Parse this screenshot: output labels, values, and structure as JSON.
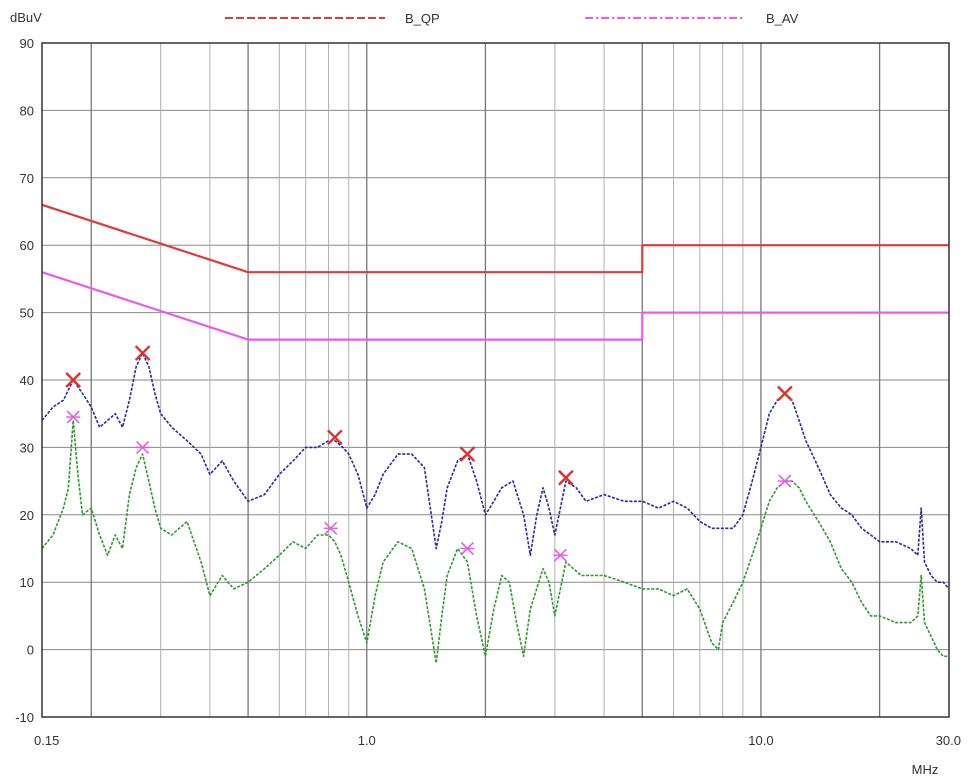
{
  "chart_data": {
    "type": "line",
    "title": "",
    "ylabel": "dBuV",
    "xlabel": "MHz",
    "x_scale": "log",
    "xlim": [
      0.15,
      30.0
    ],
    "ylim": [
      -10,
      90
    ],
    "grid": true,
    "legend_position": "top",
    "x_tick_labels": [
      {
        "value": 0.15,
        "label": "0.15"
      },
      {
        "value": 1.0,
        "label": "1.0"
      },
      {
        "value": 10.0,
        "label": "10.0"
      },
      {
        "value": 30.0,
        "label": "30.0"
      }
    ],
    "y_ticks": [
      90,
      80,
      70,
      60,
      50,
      40,
      30,
      20,
      10,
      0,
      -10
    ],
    "series": [
      {
        "name": "B_QP",
        "style": "dashed",
        "color": "#e03a3a",
        "points": [
          [
            0.15,
            66
          ],
          [
            0.5,
            56
          ],
          [
            5.0,
            56
          ],
          [
            5.0,
            60
          ],
          [
            30.0,
            60
          ]
        ]
      },
      {
        "name": "B_AV",
        "style": "dash-dot",
        "color": "#e85ce8",
        "points": [
          [
            0.15,
            56
          ],
          [
            0.5,
            46
          ],
          [
            5.0,
            46
          ],
          [
            5.0,
            50
          ],
          [
            30.0,
            50
          ]
        ]
      },
      {
        "style": "trace",
        "color": "#2a2a9a",
        "points": [
          [
            0.15,
            34
          ],
          [
            0.16,
            36
          ],
          [
            0.17,
            37
          ],
          [
            0.18,
            40
          ],
          [
            0.19,
            38
          ],
          [
            0.2,
            36
          ],
          [
            0.21,
            33
          ],
          [
            0.22,
            34
          ],
          [
            0.23,
            35
          ],
          [
            0.24,
            33
          ],
          [
            0.25,
            37
          ],
          [
            0.26,
            42
          ],
          [
            0.27,
            44
          ],
          [
            0.28,
            42
          ],
          [
            0.29,
            38
          ],
          [
            0.3,
            35
          ],
          [
            0.32,
            33
          ],
          [
            0.35,
            31
          ],
          [
            0.38,
            29
          ],
          [
            0.4,
            26
          ],
          [
            0.43,
            28
          ],
          [
            0.46,
            25
          ],
          [
            0.5,
            22
          ],
          [
            0.55,
            23
          ],
          [
            0.6,
            26
          ],
          [
            0.65,
            28
          ],
          [
            0.7,
            30
          ],
          [
            0.75,
            30
          ],
          [
            0.8,
            31
          ],
          [
            0.83,
            31
          ],
          [
            0.87,
            30
          ],
          [
            0.9,
            29
          ],
          [
            0.95,
            26
          ],
          [
            1.0,
            21
          ],
          [
            1.05,
            23
          ],
          [
            1.1,
            26
          ],
          [
            1.2,
            29
          ],
          [
            1.3,
            29
          ],
          [
            1.4,
            27
          ],
          [
            1.5,
            15
          ],
          [
            1.55,
            19
          ],
          [
            1.6,
            24
          ],
          [
            1.7,
            28
          ],
          [
            1.8,
            29
          ],
          [
            1.9,
            25
          ],
          [
            2.0,
            20
          ],
          [
            2.1,
            22
          ],
          [
            2.2,
            24
          ],
          [
            2.35,
            25
          ],
          [
            2.5,
            20
          ],
          [
            2.6,
            14
          ],
          [
            2.7,
            20
          ],
          [
            2.8,
            24
          ],
          [
            2.9,
            21
          ],
          [
            3.0,
            17
          ],
          [
            3.1,
            21
          ],
          [
            3.2,
            25
          ],
          [
            3.4,
            24
          ],
          [
            3.6,
            22
          ],
          [
            4.0,
            23
          ],
          [
            4.5,
            22
          ],
          [
            5.0,
            22
          ],
          [
            5.5,
            21
          ],
          [
            6.0,
            22
          ],
          [
            6.5,
            21
          ],
          [
            7.0,
            19
          ],
          [
            7.5,
            18
          ],
          [
            8.0,
            18
          ],
          [
            8.5,
            18
          ],
          [
            9.0,
            20
          ],
          [
            9.5,
            25
          ],
          [
            10.0,
            30
          ],
          [
            10.5,
            35
          ],
          [
            11.0,
            37
          ],
          [
            11.5,
            38
          ],
          [
            12.0,
            37
          ],
          [
            12.5,
            34
          ],
          [
            13.0,
            31
          ],
          [
            14.0,
            27
          ],
          [
            15.0,
            23
          ],
          [
            16.0,
            21
          ],
          [
            17.0,
            20
          ],
          [
            18.0,
            18
          ],
          [
            19.0,
            17
          ],
          [
            20.0,
            16
          ],
          [
            22.0,
            16
          ],
          [
            24.0,
            15
          ],
          [
            25.0,
            14
          ],
          [
            25.5,
            21
          ],
          [
            26.0,
            13
          ],
          [
            27.0,
            11
          ],
          [
            28.0,
            10
          ],
          [
            29.0,
            10
          ],
          [
            30.0,
            9
          ]
        ]
      },
      {
        "style": "trace",
        "color": "#2e9a2e",
        "points": [
          [
            0.15,
            15
          ],
          [
            0.16,
            17
          ],
          [
            0.17,
            21
          ],
          [
            0.175,
            24
          ],
          [
            0.18,
            34
          ],
          [
            0.185,
            26
          ],
          [
            0.19,
            20
          ],
          [
            0.2,
            21
          ],
          [
            0.21,
            17
          ],
          [
            0.22,
            14
          ],
          [
            0.23,
            17
          ],
          [
            0.24,
            15
          ],
          [
            0.25,
            23
          ],
          [
            0.26,
            27
          ],
          [
            0.27,
            29
          ],
          [
            0.28,
            25
          ],
          [
            0.29,
            21
          ],
          [
            0.3,
            18
          ],
          [
            0.32,
            17
          ],
          [
            0.35,
            19
          ],
          [
            0.38,
            13
          ],
          [
            0.4,
            8
          ],
          [
            0.43,
            11
          ],
          [
            0.46,
            9
          ],
          [
            0.5,
            10
          ],
          [
            0.55,
            12
          ],
          [
            0.6,
            14
          ],
          [
            0.65,
            16
          ],
          [
            0.7,
            15
          ],
          [
            0.75,
            17
          ],
          [
            0.8,
            17
          ],
          [
            0.83,
            16
          ],
          [
            0.86,
            14
          ],
          [
            0.9,
            10
          ],
          [
            0.95,
            5
          ],
          [
            1.0,
            1
          ],
          [
            1.05,
            8
          ],
          [
            1.1,
            13
          ],
          [
            1.2,
            16
          ],
          [
            1.3,
            15
          ],
          [
            1.4,
            9
          ],
          [
            1.5,
            -2
          ],
          [
            1.55,
            5
          ],
          [
            1.6,
            11
          ],
          [
            1.7,
            15
          ],
          [
            1.8,
            13
          ],
          [
            1.9,
            5
          ],
          [
            2.0,
            -1
          ],
          [
            2.1,
            6
          ],
          [
            2.2,
            11
          ],
          [
            2.3,
            10
          ],
          [
            2.4,
            4
          ],
          [
            2.5,
            -1
          ],
          [
            2.6,
            6
          ],
          [
            2.8,
            12
          ],
          [
            2.9,
            10
          ],
          [
            3.0,
            5
          ],
          [
            3.1,
            9
          ],
          [
            3.2,
            13
          ],
          [
            3.5,
            11
          ],
          [
            4.0,
            11
          ],
          [
            4.5,
            10
          ],
          [
            5.0,
            9
          ],
          [
            5.5,
            9
          ],
          [
            6.0,
            8
          ],
          [
            6.5,
            9
          ],
          [
            7.0,
            6
          ],
          [
            7.5,
            1
          ],
          [
            7.8,
            0
          ],
          [
            8.0,
            4
          ],
          [
            8.5,
            7
          ],
          [
            9.0,
            10
          ],
          [
            9.5,
            14
          ],
          [
            10.0,
            18
          ],
          [
            10.5,
            22
          ],
          [
            11.0,
            24
          ],
          [
            11.5,
            25
          ],
          [
            12.0,
            25
          ],
          [
            12.5,
            24
          ],
          [
            13.0,
            22
          ],
          [
            14.0,
            19
          ],
          [
            15.0,
            16
          ],
          [
            16.0,
            12
          ],
          [
            17.0,
            10
          ],
          [
            18.0,
            7
          ],
          [
            19.0,
            5
          ],
          [
            20.0,
            5
          ],
          [
            22.0,
            4
          ],
          [
            24.0,
            4
          ],
          [
            25.0,
            5
          ],
          [
            25.5,
            11
          ],
          [
            26.0,
            4
          ],
          [
            27.0,
            2
          ],
          [
            28.0,
            0
          ],
          [
            29.0,
            -1
          ],
          [
            30.0,
            -1
          ]
        ]
      }
    ],
    "qp_markers": [
      [
        0.18,
        40
      ],
      [
        0.27,
        44
      ],
      [
        0.83,
        31.5
      ],
      [
        1.8,
        29
      ],
      [
        3.2,
        25.5
      ],
      [
        11.5,
        38
      ]
    ],
    "av_markers": [
      [
        0.18,
        34.5
      ],
      [
        0.27,
        30
      ],
      [
        0.81,
        18
      ],
      [
        1.8,
        15
      ],
      [
        3.1,
        14
      ],
      [
        11.5,
        25
      ]
    ]
  }
}
